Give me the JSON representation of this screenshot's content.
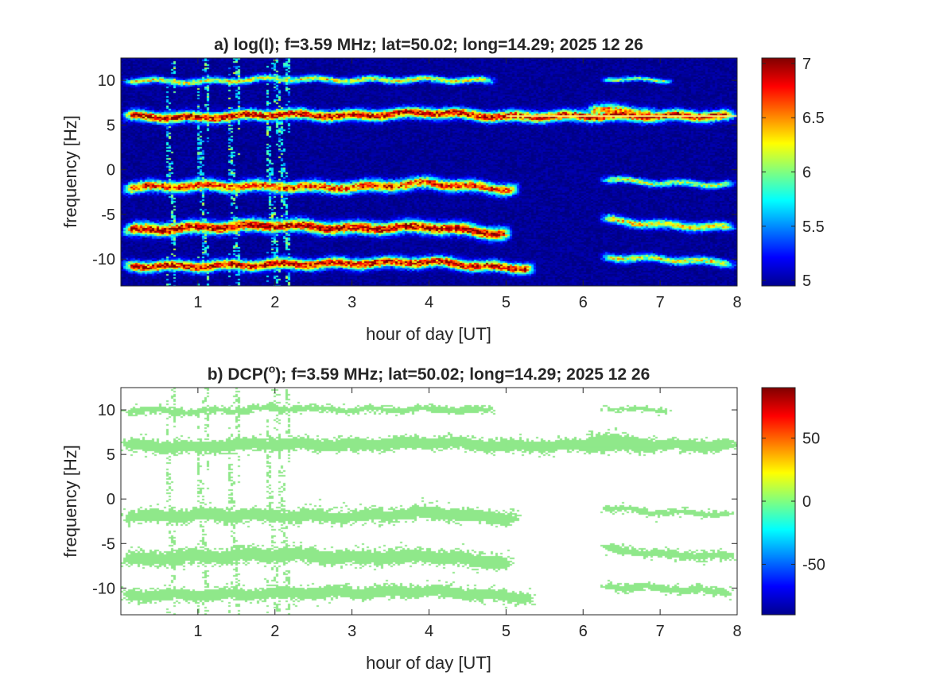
{
  "chart_data": [
    {
      "type": "heatmap",
      "panel": "a",
      "title_main": "a) log(I); f=3.59 MHz;  lat=50.02; long=14.29; 2025 12 26",
      "xlabel": "hour of day [UT]",
      "ylabel": "frequency [Hz]",
      "xlim": [
        0,
        8
      ],
      "ylim": [
        -13,
        12.5
      ],
      "xticks": [
        1,
        2,
        3,
        4,
        5,
        6,
        7,
        8
      ],
      "xtick_labels": [
        "1",
        "2",
        "3",
        "4",
        "5",
        "6",
        "7",
        "8"
      ],
      "yticks": [
        -10,
        -5,
        0,
        5,
        10
      ],
      "ytick_labels": [
        "-10",
        "-5",
        "0",
        "5",
        "10"
      ],
      "colorbar": {
        "colormap": "jet",
        "limits": [
          4.95,
          7.05
        ],
        "ticks": [
          5,
          5.5,
          6,
          6.5,
          7
        ],
        "tick_labels": [
          "5",
          "5.5",
          "6",
          "6.5",
          "7"
        ]
      },
      "background_value": 5.0,
      "bands": [
        {
          "name": "",
          "center": [
            [
              0,
              10.0
            ],
            [
              1,
              9.8
            ],
            [
              2,
              10.2
            ],
            [
              3,
              10.0
            ],
            [
              4,
              10.1
            ],
            [
              4.9,
              9.9
            ]
          ],
          "t_range": [
            0,
            4.9
          ],
          "width": 0.35,
          "peak": 6.2
        },
        {
          "name": "",
          "center": [
            [
              0,
              6.0
            ],
            [
              1,
              5.8
            ],
            [
              2,
              6.2
            ],
            [
              3,
              6.0
            ],
            [
              4,
              6.4
            ],
            [
              5,
              5.9
            ],
            [
              6,
              6.0
            ],
            [
              8,
              6.0
            ]
          ],
          "t_range": [
            0,
            8
          ],
          "width": 0.55,
          "peak": 6.9
        },
        {
          "name": "",
          "center": [
            [
              0,
              -2.0
            ],
            [
              1,
              -1.8
            ],
            [
              2,
              -1.9
            ],
            [
              3,
              -2.0
            ],
            [
              4,
              -1.5
            ],
            [
              5,
              -2.2
            ]
          ],
          "t_range": [
            0,
            5.2
          ],
          "width": 0.6,
          "peak": 6.7
        },
        {
          "name": "",
          "center": [
            [
              0,
              -6.8
            ],
            [
              1,
              -6.5
            ],
            [
              2,
              -6.2
            ],
            [
              3,
              -6.6
            ],
            [
              4,
              -6.4
            ],
            [
              5,
              -7.2
            ]
          ],
          "t_range": [
            0,
            5.1
          ],
          "width": 0.65,
          "peak": 6.95
        },
        {
          "name": "",
          "center": [
            [
              0,
              -10.8
            ],
            [
              1,
              -10.8
            ],
            [
              2,
              -10.6
            ],
            [
              3,
              -10.5
            ],
            [
              4,
              -10.3
            ],
            [
              5,
              -11.0
            ]
          ],
          "t_range": [
            0,
            5.4
          ],
          "width": 0.55,
          "peak": 6.9
        },
        {
          "name": "",
          "center": [
            [
              6.2,
              10.2
            ],
            [
              7,
              10.0
            ]
          ],
          "t_range": [
            6.2,
            7.2
          ],
          "width": 0.25,
          "peak": 6.0
        },
        {
          "name": "",
          "center": [
            [
              6.0,
              6.8
            ],
            [
              6.5,
              6.5
            ],
            [
              7,
              6.2
            ]
          ],
          "t_range": [
            6.0,
            7.0
          ],
          "width": 0.6,
          "peak": 6.5
        },
        {
          "name": "",
          "center": [
            [
              6.2,
              -1.0
            ],
            [
              7,
              -1.5
            ],
            [
              8,
              -1.7
            ]
          ],
          "t_range": [
            6.2,
            8
          ],
          "width": 0.35,
          "peak": 6.1
        },
        {
          "name": "",
          "center": [
            [
              6.2,
              -5.5
            ],
            [
              7,
              -6.2
            ],
            [
              8,
              -6.5
            ]
          ],
          "t_range": [
            6.2,
            8
          ],
          "width": 0.45,
          "peak": 6.3
        },
        {
          "name": "",
          "center": [
            [
              6.2,
              -9.8
            ],
            [
              7,
              -10.0
            ],
            [
              8,
              -10.5
            ]
          ],
          "t_range": [
            6.2,
            8
          ],
          "width": 0.4,
          "peak": 6.2
        }
      ],
      "spikes": [
        [
          0.6,
          0.7
        ],
        [
          1.0,
          1.15
        ],
        [
          1.4,
          1.55
        ],
        [
          1.9,
          2.2
        ]
      ]
    },
    {
      "type": "heatmap",
      "panel": "b",
      "title_pre": "b) DCP(",
      "title_sup": "o",
      "title_post": "); f=3.59 MHz;  lat=50.02; long=14.29; 2025 12 26",
      "xlabel": "hour of day [UT]",
      "ylabel": "frequency [Hz]",
      "xlim": [
        0,
        8
      ],
      "ylim": [
        -13,
        12.5
      ],
      "xticks": [
        1,
        2,
        3,
        4,
        5,
        6,
        7,
        8
      ],
      "xtick_labels": [
        "1",
        "2",
        "3",
        "4",
        "5",
        "6",
        "7",
        "8"
      ],
      "yticks": [
        -10,
        -5,
        0,
        5,
        10
      ],
      "ytick_labels": [
        "-10",
        "-5",
        "0",
        "5",
        "10"
      ],
      "colorbar": {
        "colormap": "jet",
        "limits": [
          -90,
          90
        ],
        "ticks": [
          -50,
          0,
          50
        ],
        "tick_labels": [
          "-50",
          "0",
          "50"
        ]
      },
      "mark_color": "#8fe88a",
      "note": "same bands as panel a, value ≈ 0"
    }
  ]
}
